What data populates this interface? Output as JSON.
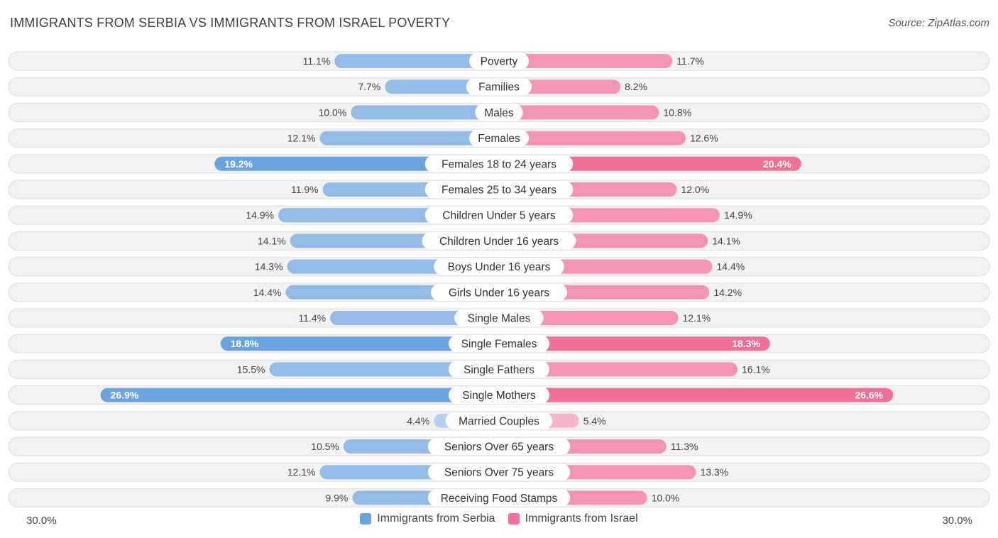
{
  "title": "IMMIGRANTS FROM SERBIA VS IMMIGRANTS FROM ISRAEL POVERTY",
  "source": "Source: ZipAtlas.com",
  "colors": {
    "serbia": "#6aa3df",
    "serbia_light": "#a9c8ec",
    "israel": "#f07098",
    "israel_light": "#f6a9c1"
  },
  "chart_data": {
    "type": "bar",
    "orientation": "horizontal-diverging",
    "title": "IMMIGRANTS FROM SERBIA VS IMMIGRANTS FROM ISRAEL POVERTY",
    "categories": [
      "Poverty",
      "Families",
      "Males",
      "Females",
      "Females 18 to 24 years",
      "Females 25 to 34 years",
      "Children Under 5 years",
      "Children Under 16 years",
      "Boys Under 16 years",
      "Girls Under 16 years",
      "Single Males",
      "Single Females",
      "Single Fathers",
      "Single Mothers",
      "Married Couples",
      "Seniors Over 65 years",
      "Seniors Over 75 years",
      "Receiving Food Stamps"
    ],
    "series": [
      {
        "name": "Immigrants from Serbia",
        "values": [
          11.1,
          7.7,
          10.0,
          12.1,
          19.2,
          11.9,
          14.9,
          14.1,
          14.3,
          14.4,
          11.4,
          18.8,
          15.5,
          26.9,
          4.4,
          10.5,
          12.1,
          9.9
        ],
        "labels": [
          "11.1%",
          "7.7%",
          "10.0%",
          "12.1%",
          "19.2%",
          "11.9%",
          "14.9%",
          "14.1%",
          "14.3%",
          "14.4%",
          "11.4%",
          "18.8%",
          "15.5%",
          "26.9%",
          "4.4%",
          "10.5%",
          "12.1%",
          "9.9%"
        ]
      },
      {
        "name": "Immigrants from Israel",
        "values": [
          11.7,
          8.2,
          10.8,
          12.6,
          20.4,
          12.0,
          14.9,
          14.1,
          14.4,
          14.2,
          12.1,
          18.3,
          16.1,
          26.6,
          5.4,
          11.3,
          13.3,
          10.0
        ],
        "labels": [
          "11.7%",
          "8.2%",
          "10.8%",
          "12.6%",
          "20.4%",
          "12.0%",
          "14.9%",
          "14.1%",
          "14.4%",
          "14.2%",
          "12.1%",
          "18.3%",
          "16.1%",
          "26.6%",
          "5.4%",
          "11.3%",
          "13.3%",
          "10.0%"
        ]
      }
    ],
    "xlim": [
      0,
      30
    ],
    "axis_labels": {
      "left": "30.0%",
      "right": "30.0%"
    },
    "legend_position": "bottom-center"
  }
}
